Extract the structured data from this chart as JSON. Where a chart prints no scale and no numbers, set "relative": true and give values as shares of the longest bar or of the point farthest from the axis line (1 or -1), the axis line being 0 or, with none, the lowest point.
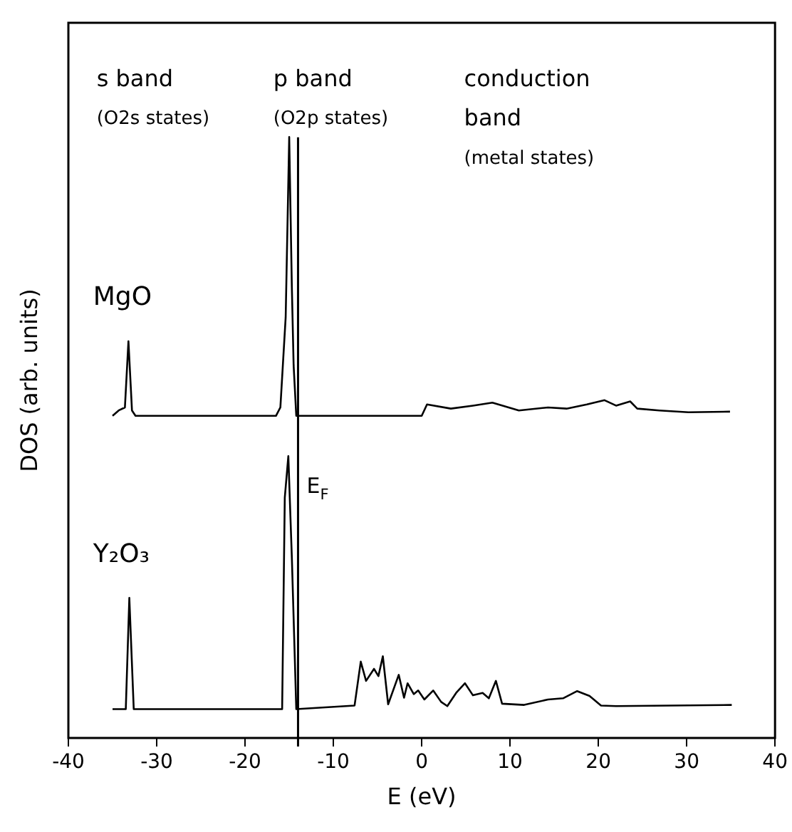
{
  "chart_data": {
    "type": "line",
    "xlabel": "E (eV)",
    "ylabel": "DOS (arb. units)",
    "relative": true,
    "xlim": [
      -40,
      40
    ],
    "xticks": [
      -40,
      -30,
      -20,
      -10,
      0,
      10,
      20,
      30,
      40
    ],
    "tick_labels": "x",
    "grid": false,
    "legend": false,
    "marker": "none",
    "line_style": "solid",
    "series": [
      {
        "name": "MgO",
        "color": "#000000",
        "x": [
          -35.0,
          -34.3,
          -33.6,
          -33.2,
          -32.8,
          -32.4,
          -16.5,
          -16.0,
          -15.4,
          -15.0,
          -14.7,
          -14.5,
          -14.2,
          0.0,
          0.6,
          3.3,
          5.8,
          8.0,
          11.0,
          14.3,
          16.4,
          18.7,
          20.7,
          22.0,
          23.6,
          24.4,
          26.9,
          30.2,
          34.9
        ],
        "values": [
          0.536,
          0.545,
          0.55,
          0.66,
          0.545,
          0.536,
          0.536,
          0.55,
          0.7,
          1,
          0.75,
          0.62,
          0.536,
          0.536,
          0.555,
          0.548,
          0.553,
          0.558,
          0.545,
          0.55,
          0.548,
          0.555,
          0.562,
          0.553,
          0.56,
          0.548,
          0.545,
          0.542,
          0.543
        ]
      },
      {
        "name": "Y₂O₃",
        "color": "#000000",
        "x": [
          -35.0,
          -33.5,
          -33.1,
          -32.6,
          -15.8,
          -15.5,
          -15.1,
          -14.7,
          -14.2,
          -7.6,
          -6.9,
          -6.3,
          -5.4,
          -4.9,
          -4.4,
          -3.8,
          -2.6,
          -2.0,
          -1.6,
          -0.9,
          -0.4,
          0.3,
          1.3,
          2.2,
          2.9,
          3.9,
          4.9,
          5.8,
          6.9,
          7.6,
          8.4,
          9.1,
          11.6,
          14.3,
          16.0,
          17.6,
          19.0,
          20.3,
          22.0,
          35.1
        ],
        "values": [
          0.048,
          0.048,
          0.233,
          0.048,
          0.048,
          0.4,
          0.469,
          0.3,
          0.048,
          0.054,
          0.127,
          0.095,
          0.115,
          0.103,
          0.136,
          0.056,
          0.105,
          0.067,
          0.091,
          0.073,
          0.079,
          0.064,
          0.079,
          0.06,
          0.053,
          0.075,
          0.091,
          0.071,
          0.075,
          0.066,
          0.095,
          0.057,
          0.055,
          0.064,
          0.066,
          0.078,
          0.07,
          0.054,
          0.053,
          0.055
        ]
      }
    ],
    "ref_lines": [
      {
        "axis": "x",
        "value": -14,
        "label": "E$_{F}$",
        "color": "#000000"
      }
    ],
    "annotations": [
      "s band",
      "(O2s states)",
      "p band",
      "(O2p states)",
      "conduction",
      "band",
      "(metal states)"
    ]
  }
}
